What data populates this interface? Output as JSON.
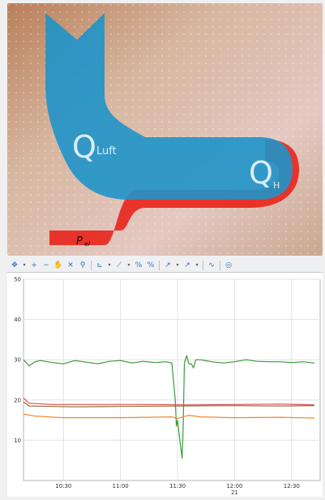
{
  "diagram": {
    "label_q_luft": "Q",
    "label_q_luft_sub": "Luft",
    "label_q_h": "Q",
    "label_q_h_sub": "H",
    "label_p": "P",
    "label_p_sub": "el",
    "colors": {
      "blue_flow": "#1f93c9",
      "red_flow": "#e8271e",
      "background": "#d8b9a2"
    }
  },
  "toolbar": {
    "icons": [
      "pan-icon",
      "zoom-in-icon",
      "zoom-out-icon",
      "hand-icon",
      "cursor-icon",
      "pin-icon",
      "axis-icon",
      "line-icon",
      "percent-icon",
      "percent-alt-icon",
      "pointer-icon",
      "pointer-alt-icon",
      "curve-icon",
      "eye-icon"
    ]
  },
  "chart_data": {
    "type": "line",
    "xlabel": "",
    "ylabel": "",
    "ylim": [
      0,
      50
    ],
    "y_ticks": [
      "50",
      "40",
      "30",
      "20",
      "10"
    ],
    "x_ticks": [
      "10:30",
      "11:00",
      "11:30",
      "12:00",
      "12:30"
    ],
    "x_sublabel": "21",
    "grid": true,
    "series": [
      {
        "color": "#3a9a3a",
        "values": [
          [
            10.15,
            30
          ],
          [
            10.2,
            28.5
          ],
          [
            10.25,
            29.5
          ],
          [
            10.3,
            29.8
          ],
          [
            10.4,
            29.3
          ],
          [
            10.5,
            29.0
          ],
          [
            10.6,
            29.8
          ],
          [
            10.7,
            29.4
          ],
          [
            10.8,
            29.0
          ],
          [
            10.9,
            29.6
          ],
          [
            11.0,
            29.8
          ],
          [
            11.1,
            29.2
          ],
          [
            11.2,
            29.6
          ],
          [
            11.3,
            29.3
          ],
          [
            11.4,
            29.5
          ],
          [
            11.45,
            29.2
          ],
          [
            11.48,
            20
          ],
          [
            11.49,
            13.5
          ],
          [
            11.5,
            15
          ],
          [
            11.52,
            10
          ],
          [
            11.54,
            5.5
          ],
          [
            11.55,
            14
          ],
          [
            11.56,
            29.2
          ],
          [
            11.58,
            31
          ],
          [
            11.6,
            29
          ],
          [
            11.62,
            29
          ],
          [
            11.64,
            28
          ],
          [
            11.66,
            30
          ],
          [
            11.7,
            30
          ],
          [
            11.8,
            29.5
          ],
          [
            11.9,
            29.2
          ],
          [
            12.0,
            29.5
          ],
          [
            12.1,
            30
          ],
          [
            12.2,
            29.6
          ],
          [
            12.3,
            29.5
          ],
          [
            12.4,
            29.5
          ],
          [
            12.5,
            29.3
          ],
          [
            12.6,
            29.5
          ],
          [
            12.7,
            29.2
          ]
        ]
      },
      {
        "color": "#d9534f",
        "values": [
          [
            10.15,
            20.5
          ],
          [
            10.2,
            19.2
          ],
          [
            10.4,
            18.9
          ],
          [
            10.8,
            18.9
          ],
          [
            11.2,
            18.9
          ],
          [
            11.6,
            18.8
          ],
          [
            12.0,
            18.9
          ],
          [
            12.4,
            19.0
          ],
          [
            12.7,
            18.8
          ]
        ]
      },
      {
        "color": "#8a6b3a",
        "values": [
          [
            10.15,
            19.5
          ],
          [
            10.2,
            18.5
          ],
          [
            10.6,
            18.3
          ],
          [
            11.0,
            18.4
          ],
          [
            11.5,
            18.5
          ],
          [
            12.0,
            18.6
          ],
          [
            12.4,
            18.5
          ],
          [
            12.7,
            18.6
          ]
        ]
      },
      {
        "color": "#f0892a",
        "values": [
          [
            10.15,
            16.5
          ],
          [
            10.25,
            16.0
          ],
          [
            10.5,
            15.6
          ],
          [
            11.0,
            15.6
          ],
          [
            11.45,
            15.8
          ],
          [
            11.5,
            15.4
          ],
          [
            11.6,
            16.2
          ],
          [
            11.7,
            15.8
          ],
          [
            12.0,
            15.6
          ],
          [
            12.4,
            15.7
          ],
          [
            12.7,
            15.5
          ]
        ]
      }
    ]
  }
}
